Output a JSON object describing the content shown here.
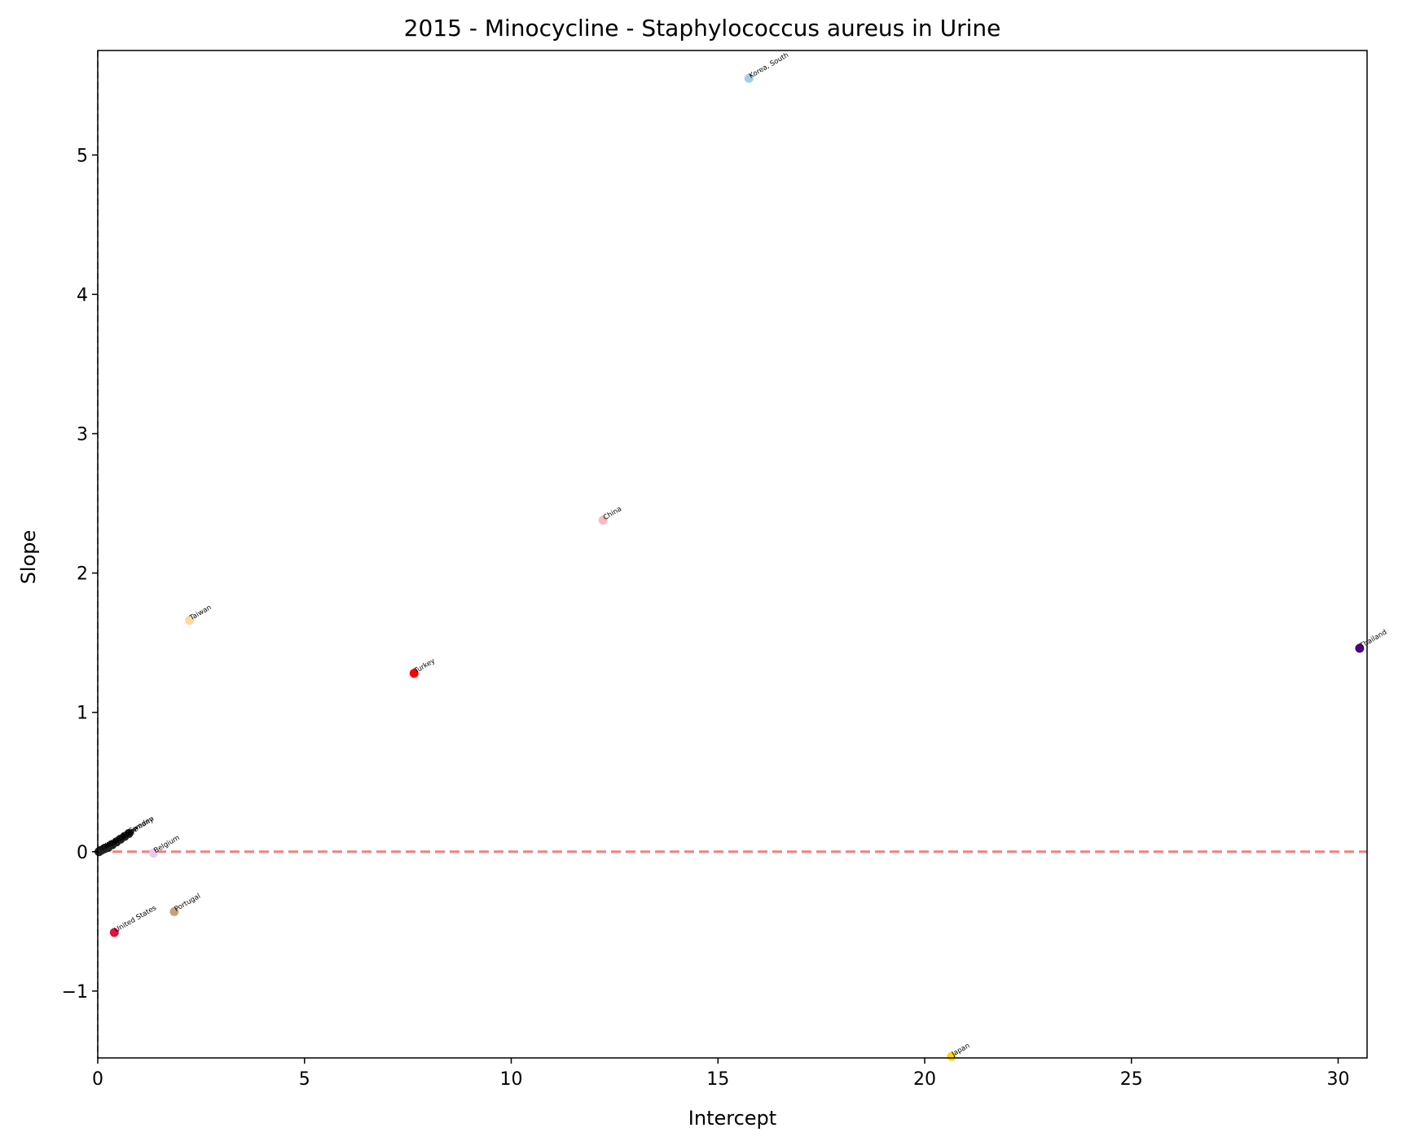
{
  "chart_data": {
    "type": "scatter",
    "title": "2015 - Minocycline - Staphylococcus aureus in Urine",
    "xlabel": "Intercept",
    "ylabel": "Slope",
    "xlim": [
      0,
      30.7
    ],
    "ylim": [
      -1.48,
      5.75
    ],
    "xticks": [
      0,
      5,
      10,
      15,
      20,
      25,
      30
    ],
    "yticks": [
      -1,
      0,
      1,
      2,
      3,
      4,
      5
    ],
    "xtick_labels": [
      "0",
      "5",
      "10",
      "15",
      "20",
      "25",
      "30"
    ],
    "ytick_labels": [
      "−1",
      "0",
      "1",
      "2",
      "3",
      "4",
      "5"
    ],
    "grid": false,
    "reference_line": {
      "y": 0,
      "color": "#f08080",
      "style": "dashed"
    },
    "points": [
      {
        "label": "Korea, South",
        "x": 15.75,
        "y": 5.55,
        "color": "#a6cee3"
      },
      {
        "label": "China",
        "x": 12.22,
        "y": 2.38,
        "color": "#ffb6c1"
      },
      {
        "label": "Taiwan",
        "x": 2.22,
        "y": 1.66,
        "color": "#ffd9a0"
      },
      {
        "label": "Thailand",
        "x": 30.52,
        "y": 1.46,
        "color": "#4b0082"
      },
      {
        "label": "Turkey",
        "x": 7.65,
        "y": 1.28,
        "color": "#ff0000"
      },
      {
        "label": "Belgium",
        "x": 1.35,
        "y": -0.01,
        "color": "#e6c8f0"
      },
      {
        "label": "Portugal",
        "x": 1.85,
        "y": -0.43,
        "color": "#c8a07a"
      },
      {
        "label": "United States",
        "x": 0.4,
        "y": -0.58,
        "color": "#dc143c"
      },
      {
        "label": "Japan",
        "x": 20.65,
        "y": -1.47,
        "color": "#ffd700"
      },
      {
        "label": "Sweden",
        "x": 0.75,
        "y": 0.13,
        "color": "#222222"
      },
      {
        "label": "Germany",
        "x": 0.65,
        "y": 0.11,
        "color": "#222222"
      },
      {
        "label": "Italy",
        "x": 0.55,
        "y": 0.09,
        "color": "#222222"
      },
      {
        "label": "France",
        "x": 0.45,
        "y": 0.07,
        "color": "#222222"
      },
      {
        "label": "Spain",
        "x": 0.35,
        "y": 0.05,
        "color": "#222222"
      },
      {
        "label": "Canada",
        "x": 0.25,
        "y": 0.03,
        "color": "#222222"
      },
      {
        "label": "Mexico",
        "x": 0.15,
        "y": 0.02,
        "color": "#222222"
      },
      {
        "label": "Chile",
        "x": 0.08,
        "y": 0.01,
        "color": "#222222"
      },
      {
        "label": "India",
        "x": 0.03,
        "y": 0.0,
        "color": "#222222"
      }
    ]
  }
}
